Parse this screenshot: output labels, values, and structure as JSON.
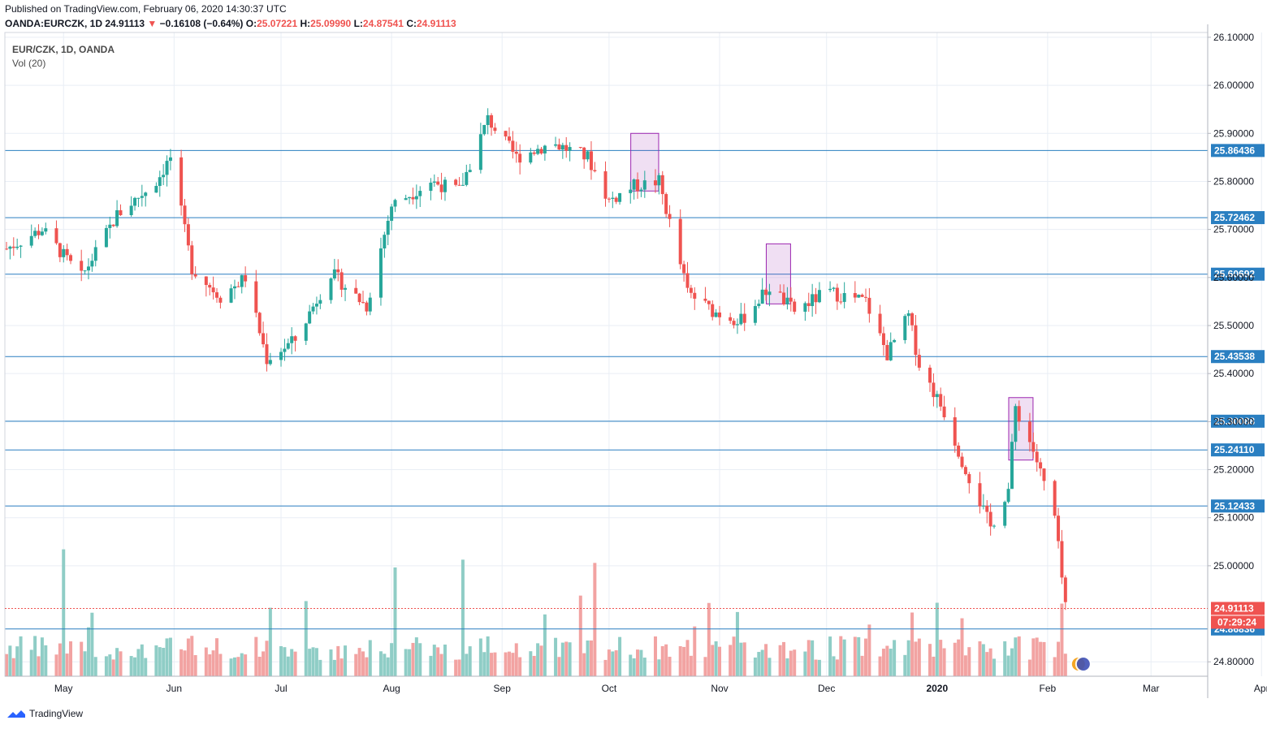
{
  "header": {
    "published": "Published on TradingView.com, February 06, 2020 14:30:37 UTC",
    "symbol": "OANDA:EURCZK, 1D",
    "last": "24.91113",
    "arrow": "▼",
    "change": "−0.16108 (−0.64%)",
    "o_key": "O:",
    "o": "25.07221",
    "h_key": "H:",
    "h": "25.09990",
    "l_key": "L:",
    "l": "24.87541",
    "c_key": "C:",
    "c": "24.91113"
  },
  "legend": {
    "symbol": "EUR/CZK, 1D, OANDA",
    "volume": "Vol (20)"
  },
  "footer": {
    "brand": "TradingView"
  },
  "colors": {
    "up": "#26a69a",
    "down": "#ef5350",
    "up_vol": "#8fcdc6",
    "down_vol": "#f2a3a2",
    "hline": "#2a7fc1",
    "grid": "#e9eef5",
    "highlight": "#9c27b0"
  },
  "chart_data": {
    "type": "candlestick",
    "y_axis": {
      "ticks": [
        "26.10000",
        "26.00000",
        "25.90000",
        "25.80000",
        "25.70000",
        "25.60000",
        "25.50000",
        "25.40000",
        "25.30000",
        "25.20000",
        "25.10000",
        "25.00000",
        "24.80000"
      ],
      "range": [
        24.77,
        26.11
      ]
    },
    "x_axis": {
      "labels": [
        "May",
        "Jun",
        "Jul",
        "Aug",
        "Sep",
        "Oct",
        "Nov",
        "Dec",
        "2020",
        "Feb",
        "Mar",
        "Apr"
      ]
    },
    "horizontal_levels": [
      "25.86436",
      "25.72462",
      "25.60692",
      "25.43538",
      "25.30088",
      "25.24110",
      "25.12433",
      "24.86836"
    ],
    "last_price": "24.91113",
    "countdown": "07:29:24",
    "highlight_boxes": [
      {
        "from": "2019-10-08",
        "to": "2019-10-14",
        "high": 25.9,
        "low": 25.78
      },
      {
        "from": "2019-11-15",
        "to": "2019-11-20",
        "high": 25.67,
        "low": 25.545
      },
      {
        "from": "2020-01-22",
        "to": "2020-01-27",
        "high": 25.35,
        "low": 25.22
      }
    ],
    "close_path": [
      [
        "2019-04-15",
        25.66
      ],
      [
        "2019-04-25",
        25.7
      ],
      [
        "2019-05-06",
        25.6
      ],
      [
        "2019-05-16",
        25.73
      ],
      [
        "2019-05-27",
        25.8
      ],
      [
        "2019-05-31",
        25.85
      ],
      [
        "2019-06-06",
        25.62
      ],
      [
        "2019-06-14",
        25.56
      ],
      [
        "2019-06-21",
        25.6
      ],
      [
        "2019-06-27",
        25.43
      ],
      [
        "2019-07-05",
        25.47
      ],
      [
        "2019-07-15",
        25.61
      ],
      [
        "2019-07-25",
        25.54
      ],
      [
        "2019-08-01",
        25.75
      ],
      [
        "2019-08-12",
        25.8
      ],
      [
        "2019-08-20",
        25.78
      ],
      [
        "2019-08-28",
        25.93
      ],
      [
        "2019-09-05",
        25.85
      ],
      [
        "2019-09-15",
        25.88
      ],
      [
        "2019-09-25",
        25.85
      ],
      [
        "2019-10-01",
        25.76
      ],
      [
        "2019-10-08",
        25.79
      ],
      [
        "2019-10-15",
        25.8
      ],
      [
        "2019-10-23",
        25.57
      ],
      [
        "2019-10-30",
        25.53
      ],
      [
        "2019-11-07",
        25.51
      ],
      [
        "2019-11-15",
        25.58
      ],
      [
        "2019-11-22",
        25.53
      ],
      [
        "2019-12-01",
        25.57
      ],
      [
        "2019-12-12",
        25.55
      ],
      [
        "2019-12-18",
        25.44
      ],
      [
        "2019-12-24",
        25.52
      ],
      [
        "2019-12-27",
        25.42
      ],
      [
        "2020-01-03",
        25.32
      ],
      [
        "2020-01-08",
        25.22
      ],
      [
        "2020-01-16",
        25.08
      ],
      [
        "2020-01-21",
        25.16
      ],
      [
        "2020-01-23",
        25.33
      ],
      [
        "2020-01-28",
        25.24
      ],
      [
        "2020-02-03",
        25.1
      ],
      [
        "2020-02-06",
        24.91
      ]
    ],
    "volume_spikes": [
      [
        "2019-05-01",
        "high"
      ],
      [
        "2019-08-02",
        "high"
      ],
      [
        "2019-08-21",
        "high"
      ],
      [
        "2019-09-27",
        "high"
      ]
    ]
  }
}
